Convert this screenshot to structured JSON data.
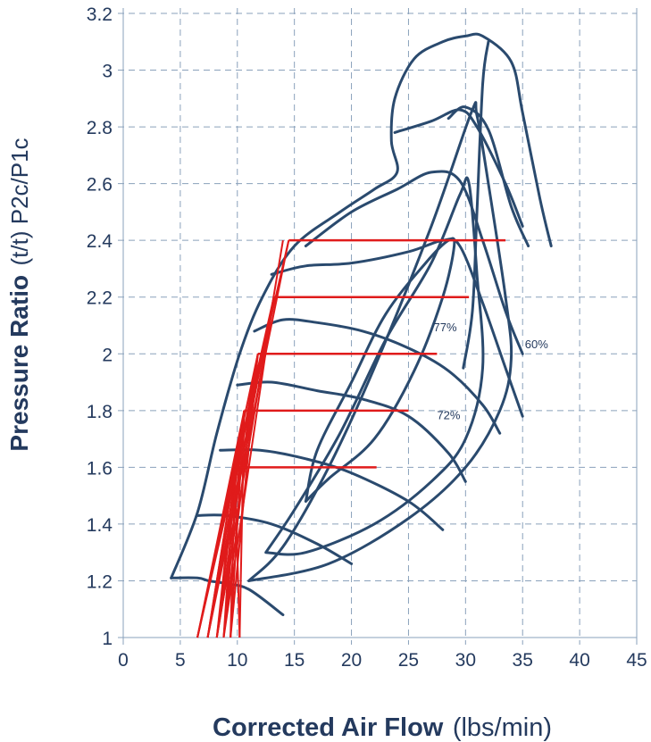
{
  "chart_data": {
    "type": "line",
    "title": "",
    "xlabel": "Corrected Air Flow",
    "xlabel_unit": "(lbs/min)",
    "ylabel": "Pressure Ratio",
    "ylabel_unit": "(t/t) P2c/P1c",
    "xlim": [
      0,
      45
    ],
    "ylim": [
      1,
      3.2
    ],
    "x_ticks": [
      "0",
      "5",
      "10",
      "15",
      "20",
      "25",
      "30",
      "35",
      "40",
      "45"
    ],
    "y_ticks": [
      "1",
      "1.2",
      "1.4",
      "1.6",
      "1.8",
      "2",
      "2.2",
      "2.4",
      "2.6",
      "2.8",
      "3",
      "3.2"
    ],
    "grid": true,
    "colors": {
      "map": "#2a4a6e",
      "overlay": "#e01b1b",
      "grid": "#8aa1bb",
      "text": "#243a5e"
    },
    "efficiency_labels": [
      {
        "text": "77%",
        "x": 27.2,
        "y": 2.08
      },
      {
        "text": "60%",
        "x": 35.2,
        "y": 2.02
      },
      {
        "text": "72%",
        "x": 27.5,
        "y": 1.77
      }
    ],
    "compressor_map": {
      "outline": [
        [
          4.2,
          1.21
        ],
        [
          6.5,
          1.44
        ],
        [
          8.2,
          1.72
        ],
        [
          10.2,
          2.0
        ],
        [
          12.2,
          2.2
        ],
        [
          15,
          2.38
        ],
        [
          19,
          2.5
        ],
        [
          22,
          2.58
        ],
        [
          24,
          2.64
        ],
        [
          23.5,
          2.75
        ],
        [
          23.8,
          2.9
        ],
        [
          25.5,
          3.04
        ],
        [
          28,
          3.1
        ],
        [
          30,
          3.12
        ],
        [
          31.5,
          3.12
        ],
        [
          34,
          3.03
        ],
        [
          35,
          2.85
        ],
        [
          36.5,
          2.55
        ],
        [
          37.5,
          2.38
        ]
      ],
      "speed_lines": [
        [
          [
            4.2,
            1.21
          ],
          [
            6.5,
            1.21
          ],
          [
            7.5,
            1.2
          ],
          [
            9,
            1.19
          ],
          [
            11,
            1.17
          ],
          [
            14,
            1.08
          ]
        ],
        [
          [
            6.5,
            1.43
          ],
          [
            9,
            1.43
          ],
          [
            13,
            1.4
          ],
          [
            17,
            1.33
          ],
          [
            20,
            1.26
          ]
        ],
        [
          [
            8.5,
            1.66
          ],
          [
            12,
            1.66
          ],
          [
            16,
            1.63
          ],
          [
            20,
            1.58
          ],
          [
            25,
            1.48
          ],
          [
            28,
            1.38
          ]
        ],
        [
          [
            10,
            1.89
          ],
          [
            13,
            1.9
          ],
          [
            17,
            1.87
          ],
          [
            21,
            1.84
          ],
          [
            25,
            1.78
          ],
          [
            28.5,
            1.65
          ],
          [
            30,
            1.55
          ]
        ],
        [
          [
            11.5,
            2.08
          ],
          [
            14,
            2.12
          ],
          [
            17,
            2.11
          ],
          [
            21,
            2.08
          ],
          [
            25,
            2.02
          ],
          [
            28.5,
            1.94
          ],
          [
            31.5,
            1.82
          ],
          [
            33,
            1.72
          ]
        ],
        [
          [
            13,
            2.28
          ],
          [
            16,
            2.31
          ],
          [
            20,
            2.32
          ],
          [
            25,
            2.36
          ],
          [
            28,
            2.4
          ],
          [
            29.5,
            2.38
          ],
          [
            31.5,
            2.18
          ],
          [
            33.5,
            1.95
          ],
          [
            35,
            1.78
          ]
        ],
        [
          [
            16,
            2.38
          ],
          [
            20,
            2.5
          ],
          [
            24,
            2.58
          ],
          [
            27,
            2.64
          ],
          [
            29.5,
            2.61
          ],
          [
            31.5,
            2.4
          ],
          [
            33.5,
            2.15
          ],
          [
            35,
            2.0
          ]
        ],
        [
          [
            23.8,
            2.78
          ],
          [
            27,
            2.82
          ],
          [
            29.5,
            2.86
          ],
          [
            31,
            2.8
          ],
          [
            33.5,
            2.6
          ],
          [
            35,
            2.45
          ]
        ],
        [
          [
            28.5,
            2.83
          ],
          [
            30,
            2.87
          ],
          [
            32,
            2.79
          ],
          [
            34,
            2.52
          ],
          [
            35.5,
            2.38
          ]
        ]
      ],
      "efficiency_islands": [
        [
          [
            16,
            1.48
          ],
          [
            18,
            1.56
          ],
          [
            22,
            1.7
          ],
          [
            25.5,
            1.94
          ],
          [
            28,
            2.2
          ],
          [
            29,
            2.38
          ],
          [
            28.5,
            2.4
          ],
          [
            26.5,
            2.32
          ],
          [
            23,
            2.14
          ],
          [
            20,
            1.9
          ],
          [
            17,
            1.66
          ],
          [
            16,
            1.48
          ]
        ],
        [
          [
            12.5,
            1.3
          ],
          [
            15,
            1.45
          ],
          [
            19,
            1.72
          ],
          [
            23,
            2.05
          ],
          [
            27,
            2.32
          ],
          [
            29.5,
            2.56
          ],
          [
            30.3,
            2.6
          ],
          [
            31,
            2.28
          ],
          [
            31.5,
            1.95
          ],
          [
            30,
            1.7
          ],
          [
            27,
            1.55
          ],
          [
            22,
            1.4
          ],
          [
            16,
            1.3
          ],
          [
            12.5,
            1.3
          ]
        ],
        [
          [
            11,
            1.2
          ],
          [
            14,
            1.32
          ],
          [
            18,
            1.6
          ],
          [
            22,
            1.95
          ],
          [
            27,
            2.45
          ],
          [
            30.5,
            2.85
          ],
          [
            31,
            2.84
          ],
          [
            32,
            2.6
          ],
          [
            33.5,
            2.2
          ],
          [
            34,
            1.98
          ],
          [
            33,
            1.8
          ],
          [
            30,
            1.6
          ],
          [
            25,
            1.42
          ],
          [
            18,
            1.26
          ],
          [
            11,
            1.2
          ]
        ],
        [
          [
            32,
            3.1
          ],
          [
            31.5,
            2.95
          ],
          [
            31,
            2.5
          ],
          [
            30.6,
            2.15
          ],
          [
            29.8,
            1.95
          ]
        ]
      ]
    },
    "engine_lines": [
      {
        "start": [
          6.5,
          1.0
        ],
        "points": [
          [
            14.5,
            2.4
          ],
          [
            30.3,
            2.2
          ],
          [
            27.5,
            2.0
          ],
          [
            25,
            1.8
          ],
          [
            22.2,
            1.6
          ]
        ]
      },
      {
        "start": [
          7.4,
          1.0
        ],
        "points": [
          [
            14.5,
            2.4
          ],
          [
            30.3,
            2.2
          ],
          [
            27.5,
            2.0
          ],
          [
            25,
            1.8
          ],
          [
            22.2,
            1.6
          ]
        ]
      },
      {
        "start": [
          8.2,
          1.0
        ],
        "points": [
          [
            14,
            2.4
          ],
          [
            13.2,
            2.2
          ],
          [
            27.5,
            2.0
          ],
          [
            25,
            1.8
          ],
          [
            22.2,
            1.6
          ]
        ]
      },
      {
        "start": [
          8.8,
          1.0
        ],
        "points": [
          [
            13.2,
            2.2
          ],
          [
            11.8,
            2.0
          ],
          [
            25,
            1.8
          ],
          [
            22.2,
            1.6
          ]
        ]
      },
      {
        "start": [
          9.4,
          1.0
        ],
        "points": [
          [
            11.8,
            2.0
          ],
          [
            10.6,
            1.8
          ],
          [
            22.2,
            1.6
          ]
        ]
      },
      {
        "start": [
          10.2,
          1.0
        ],
        "points": [
          [
            10.6,
            1.8
          ],
          [
            9.8,
            1.6
          ]
        ]
      }
    ],
    "boost_levels": [
      {
        "y": 2.4,
        "x_start": 14.5,
        "x_end": 33.5
      },
      {
        "y": 2.2,
        "x_start": 13.2,
        "x_end": 30.3
      },
      {
        "y": 2.0,
        "x_start": 11.8,
        "x_end": 27.5
      },
      {
        "y": 1.8,
        "x_start": 10.6,
        "x_end": 25.0
      },
      {
        "y": 1.6,
        "x_start": 9.8,
        "x_end": 22.2
      }
    ]
  }
}
